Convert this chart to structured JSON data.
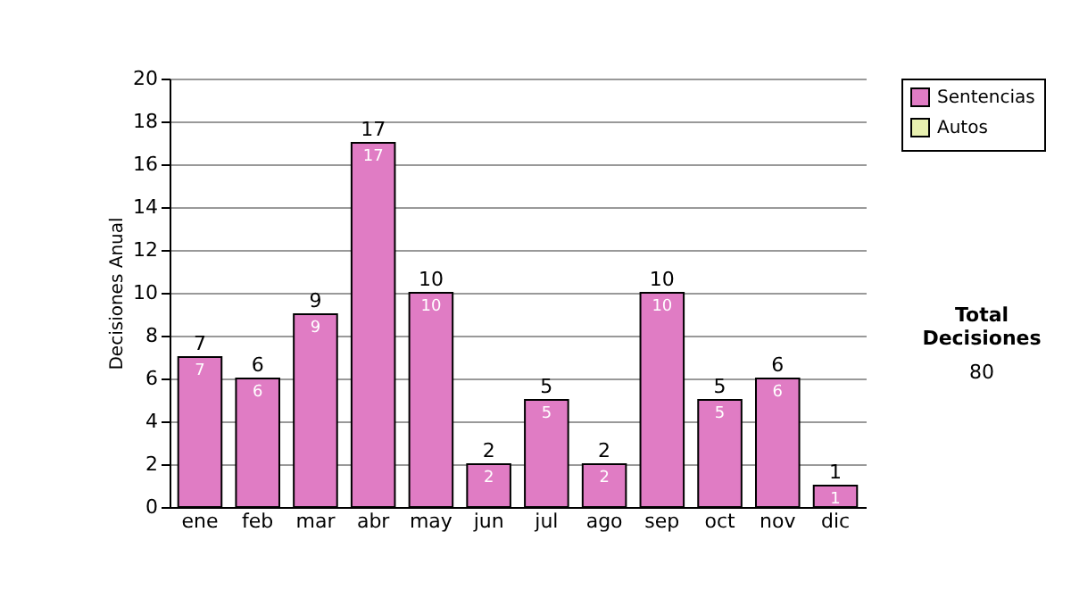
{
  "chart_data": {
    "type": "bar",
    "ylabel": "Decisiones Anual",
    "categories": [
      "ene",
      "feb",
      "mar",
      "abr",
      "may",
      "jun",
      "jul",
      "ago",
      "sep",
      "oct",
      "nov",
      "dic"
    ],
    "series": [
      {
        "name": "Sentencias",
        "color": "#e07cc4",
        "values": [
          7,
          6,
          9,
          17,
          10,
          2,
          5,
          2,
          10,
          5,
          6,
          1
        ],
        "value_labels": [
          "7",
          "6",
          "9",
          "17",
          "10",
          "2",
          "5",
          "2",
          "10",
          "5",
          "6",
          "1"
        ]
      },
      {
        "name": "Autos",
        "color": "#e8f0b0",
        "values": [
          null,
          null,
          null,
          null,
          null,
          null,
          null,
          null,
          null,
          null,
          null,
          null
        ]
      }
    ],
    "totals": [
      "7",
      "6",
      "9",
      "17",
      "10",
      "2",
      "5",
      "2",
      "10",
      "5",
      "6",
      "1"
    ],
    "ylim": [
      0,
      20
    ],
    "yticks": [
      0,
      2,
      4,
      6,
      8,
      10,
      12,
      14,
      16,
      18,
      20
    ],
    "grid": "y",
    "legend": "right",
    "annotations": [
      "Total Decisiones",
      "80"
    ]
  }
}
